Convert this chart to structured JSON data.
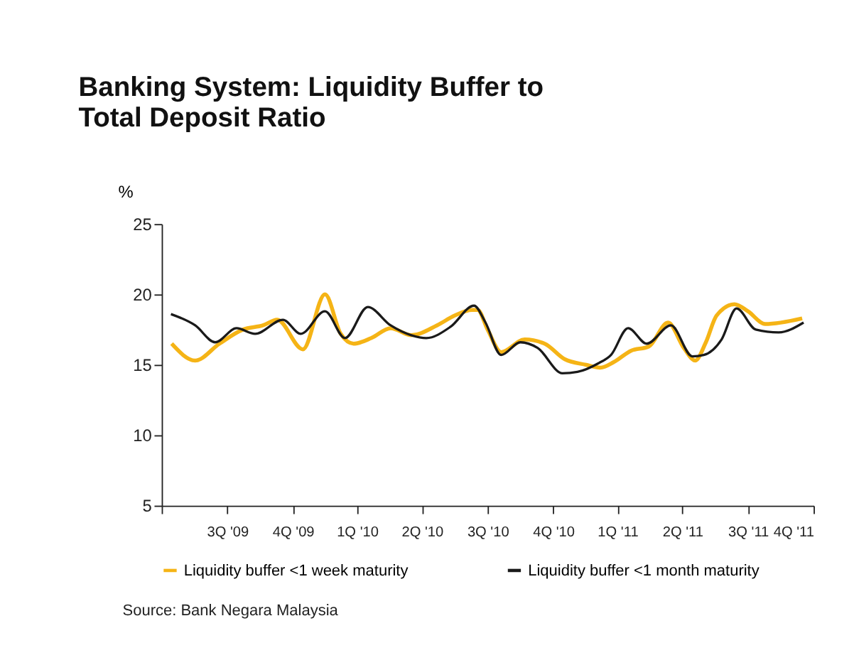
{
  "chart_data": {
    "type": "line",
    "title": [
      "Banking System: Liquidity Buffer to",
      "Total Deposit Ratio"
    ],
    "ylabel": "%",
    "xlim": [
      "2009-07-01",
      "2012-01-01"
    ],
    "xticks": [
      {
        "value": "2009-07-01",
        "label": null
      },
      {
        "value": "2009-10-01",
        "label": "3Q '09"
      },
      {
        "value": "2010-01-01",
        "label": "4Q '09"
      },
      {
        "value": "2010-04-01",
        "label": "1Q '10"
      },
      {
        "value": "2010-07-01",
        "label": "2Q '10"
      },
      {
        "value": "2010-10-01",
        "label": "3Q '10"
      },
      {
        "value": "2011-01-01",
        "label": "4Q '10"
      },
      {
        "value": "2011-04-01",
        "label": "1Q '11"
      },
      {
        "value": "2011-07-01",
        "label": "2Q '11"
      },
      {
        "value": "2011-10-01",
        "label": "3Q '11"
      },
      {
        "value": "2012-01-01",
        "label": "4Q '11"
      }
    ],
    "ylim": [
      5,
      25
    ],
    "yticks": [
      5,
      10,
      15,
      20,
      25
    ],
    "grid": false,
    "legend": "bottom",
    "marker": "none",
    "line_style": "solid",
    "series": [
      {
        "name": "Liquidity buffer <1 week maturity",
        "color": "#f5b416",
        "x": [
          "2009-07-15",
          "2009-08-17",
          "2009-09-20",
          "2009-10-23",
          "2009-11-20",
          "2009-12-10",
          "2010-01-15",
          "2010-02-15",
          "2010-03-09",
          "2010-03-27",
          "2010-04-21",
          "2010-05-18",
          "2010-06-16",
          "2010-07-22",
          "2010-08-16",
          "2010-09-09",
          "2010-09-17",
          "2010-10-01",
          "2010-10-20",
          "2010-11-22",
          "2010-12-20",
          "2011-01-17",
          "2011-02-16",
          "2011-03-08",
          "2011-03-27",
          "2011-04-20",
          "2011-05-15",
          "2011-06-11",
          "2011-07-03",
          "2011-07-19",
          "2011-08-03",
          "2011-08-18",
          "2011-09-12",
          "2011-10-01",
          "2011-10-25",
          "2011-12-16"
        ],
        "values": [
          16.5,
          15.3,
          16.5,
          17.5,
          17.8,
          18.2,
          16.1,
          20.0,
          17.2,
          16.5,
          16.9,
          17.6,
          17.1,
          17.8,
          18.5,
          18.9,
          18.9,
          17.5,
          15.9,
          16.8,
          16.5,
          15.4,
          15.0,
          14.8,
          15.2,
          16.0,
          16.3,
          18.0,
          16.2,
          15.3,
          16.6,
          18.5,
          19.3,
          18.8,
          17.9,
          18.3
        ]
      },
      {
        "name": "Liquidity buffer <1 month maturity",
        "color": "#1a1a1a",
        "x": [
          "2009-07-14",
          "2009-08-17",
          "2009-09-14",
          "2009-10-14",
          "2009-11-09",
          "2009-12-18",
          "2010-01-12",
          "2010-02-15",
          "2010-03-15",
          "2010-04-16",
          "2010-05-18",
          "2010-06-16",
          "2010-07-07",
          "2010-08-10",
          "2010-09-12",
          "2010-09-28",
          "2010-10-20",
          "2010-11-16",
          "2010-12-10",
          "2011-01-14",
          "2011-02-04",
          "2011-03-05",
          "2011-03-23",
          "2011-04-16",
          "2011-05-12",
          "2011-06-15",
          "2011-07-15",
          "2011-07-31",
          "2011-08-25",
          "2011-09-15",
          "2011-10-12",
          "2011-11-13",
          "2011-12-18"
        ],
        "values": [
          18.6,
          17.8,
          16.6,
          17.6,
          17.2,
          18.2,
          17.2,
          18.8,
          16.9,
          19.1,
          17.8,
          17.1,
          16.9,
          17.7,
          19.2,
          18.0,
          15.7,
          16.6,
          16.2,
          14.4,
          14.5,
          15.1,
          15.7,
          17.6,
          16.5,
          17.8,
          15.6,
          15.7,
          16.8,
          19.0,
          17.5,
          17.3,
          18.0
        ]
      }
    ],
    "annotations": [
      "Source: Bank Negara Malaysia"
    ]
  }
}
